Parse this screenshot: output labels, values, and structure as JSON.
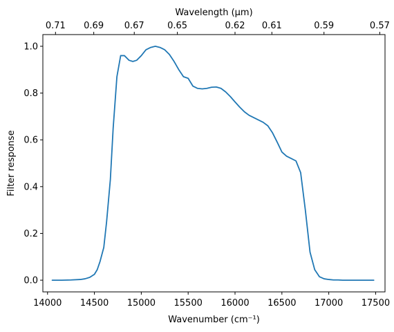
{
  "chart_data": {
    "type": "line",
    "xlabel": "Wavenumber (cm⁻¹)",
    "ylabel": "Filter response",
    "top_xlabel": "Wavelength (μm)",
    "xlim": [
      13950,
      17600
    ],
    "ylim": [
      -0.05,
      1.05
    ],
    "grid": false,
    "x_ticks": [
      14000,
      14500,
      15000,
      15500,
      16000,
      16500,
      17000,
      17500
    ],
    "y_ticks": [
      0.0,
      0.2,
      0.4,
      0.6,
      0.8,
      1.0
    ],
    "top_ticks": [
      {
        "label": "0.71",
        "wavenumber": 14085
      },
      {
        "label": "0.69",
        "wavenumber": 14493
      },
      {
        "label": "0.67",
        "wavenumber": 14925
      },
      {
        "label": "0.65",
        "wavenumber": 15385
      },
      {
        "label": "0.62",
        "wavenumber": 16000
      },
      {
        "label": "0.61",
        "wavenumber": 16393
      },
      {
        "label": "0.59",
        "wavenumber": 16949
      },
      {
        "label": "0.57",
        "wavenumber": 17544
      }
    ],
    "line_color": "#1f77b4",
    "series": [
      {
        "x": [
          14050,
          14150,
          14250,
          14350,
          14400,
          14450,
          14500,
          14530,
          14560,
          14600,
          14630,
          14670,
          14700,
          14740,
          14780,
          14820,
          14870,
          14910,
          14950,
          15000,
          15050,
          15100,
          15150,
          15200,
          15250,
          15300,
          15350,
          15400,
          15450,
          15500,
          15550,
          15600,
          15650,
          15700,
          15750,
          15800,
          15850,
          15900,
          15950,
          16000,
          16050,
          16100,
          16150,
          16200,
          16250,
          16300,
          16350,
          16400,
          16450,
          16500,
          16550,
          16600,
          16650,
          16700,
          16750,
          16800,
          16850,
          16900,
          16950,
          17000,
          17050,
          17100,
          17150,
          17200,
          17250,
          17300,
          17400,
          17480
        ],
        "y": [
          0.0,
          0.0,
          0.001,
          0.003,
          0.006,
          0.012,
          0.025,
          0.045,
          0.08,
          0.14,
          0.25,
          0.43,
          0.65,
          0.87,
          0.96,
          0.96,
          0.94,
          0.935,
          0.94,
          0.96,
          0.985,
          0.995,
          1.0,
          0.995,
          0.985,
          0.965,
          0.935,
          0.9,
          0.87,
          0.863,
          0.83,
          0.82,
          0.818,
          0.82,
          0.825,
          0.826,
          0.82,
          0.805,
          0.785,
          0.762,
          0.74,
          0.72,
          0.705,
          0.695,
          0.685,
          0.675,
          0.66,
          0.63,
          0.59,
          0.548,
          0.53,
          0.52,
          0.51,
          0.46,
          0.3,
          0.12,
          0.045,
          0.015,
          0.006,
          0.003,
          0.001,
          0.001,
          0.0,
          0.0,
          0.0,
          0.0,
          0.0,
          0.0
        ]
      }
    ]
  }
}
